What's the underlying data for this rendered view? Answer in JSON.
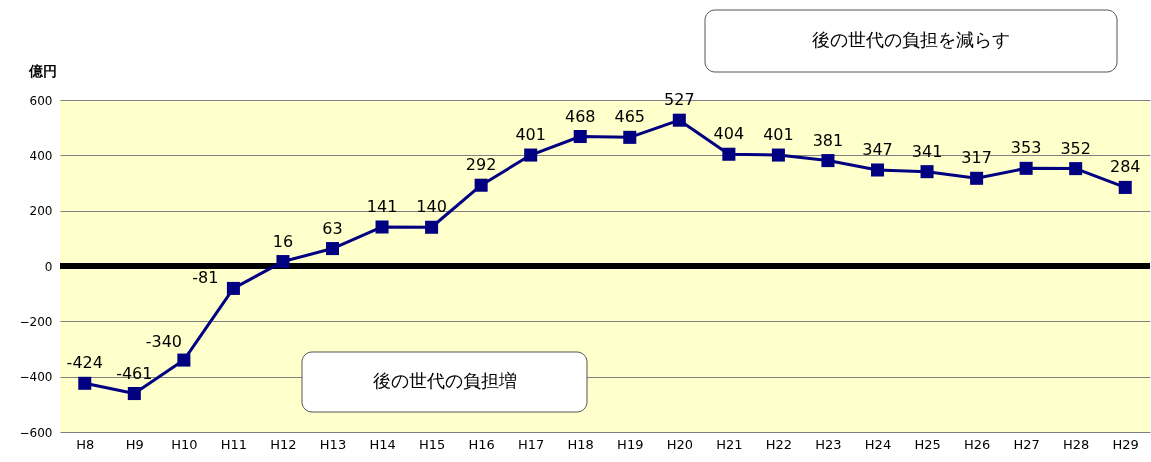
{
  "chart_data": {
    "type": "line",
    "ylabel": "億円",
    "categories": [
      "H8",
      "H9",
      "H10",
      "H11",
      "H12",
      "H13",
      "H14",
      "H15",
      "H16",
      "H17",
      "H18",
      "H19",
      "H20",
      "H21",
      "H22",
      "H23",
      "H24",
      "H25",
      "H26",
      "H27",
      "H28",
      "H29"
    ],
    "series": [
      {
        "color": "#000080",
        "values": [
          -424,
          -461,
          -340,
          -81,
          16,
          63,
          141,
          140,
          292,
          401,
          468,
          465,
          527,
          404,
          401,
          381,
          347,
          341,
          317,
          353,
          352,
          284
        ]
      }
    ],
    "ylim": [
      -600,
      600
    ],
    "yticks": [
      -600,
      -400,
      -200,
      0,
      200,
      400,
      600
    ],
    "grid": "y",
    "marker": "square",
    "line_style": "solid",
    "data_labels": true,
    "ref_lines": [
      {
        "axis": "y",
        "value": 0,
        "color": "#000000"
      }
    ],
    "annotations": [
      "後の世代の負担増",
      "後の世代の負担を減らす"
    ]
  }
}
